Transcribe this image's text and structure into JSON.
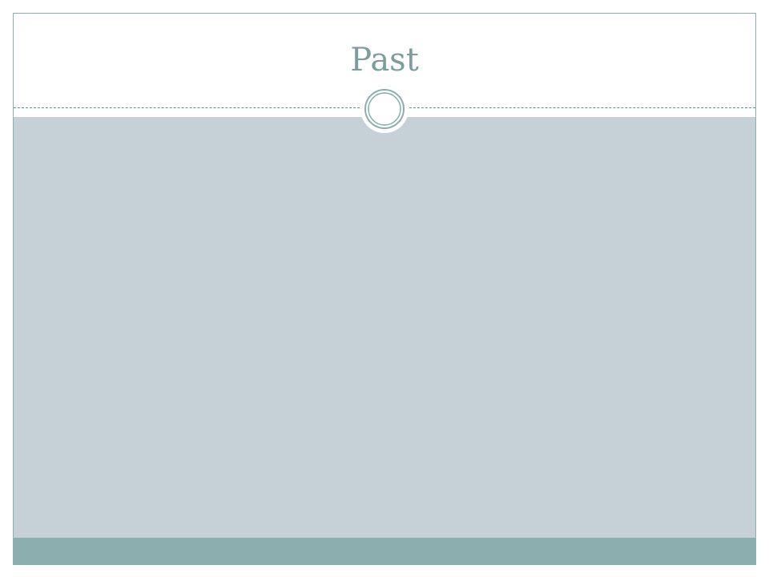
{
  "slide": {
    "title": "Past"
  },
  "colors": {
    "title_text": "#7d9d9d",
    "frame_border": "#8aaeae",
    "content_background": "#c6d1d7",
    "footer_band": "#8daeaf",
    "divider": "#6d8c8c",
    "ornament_ring": "#8aaeae"
  },
  "icons": {
    "ornament": "double-ring-circle-icon"
  }
}
